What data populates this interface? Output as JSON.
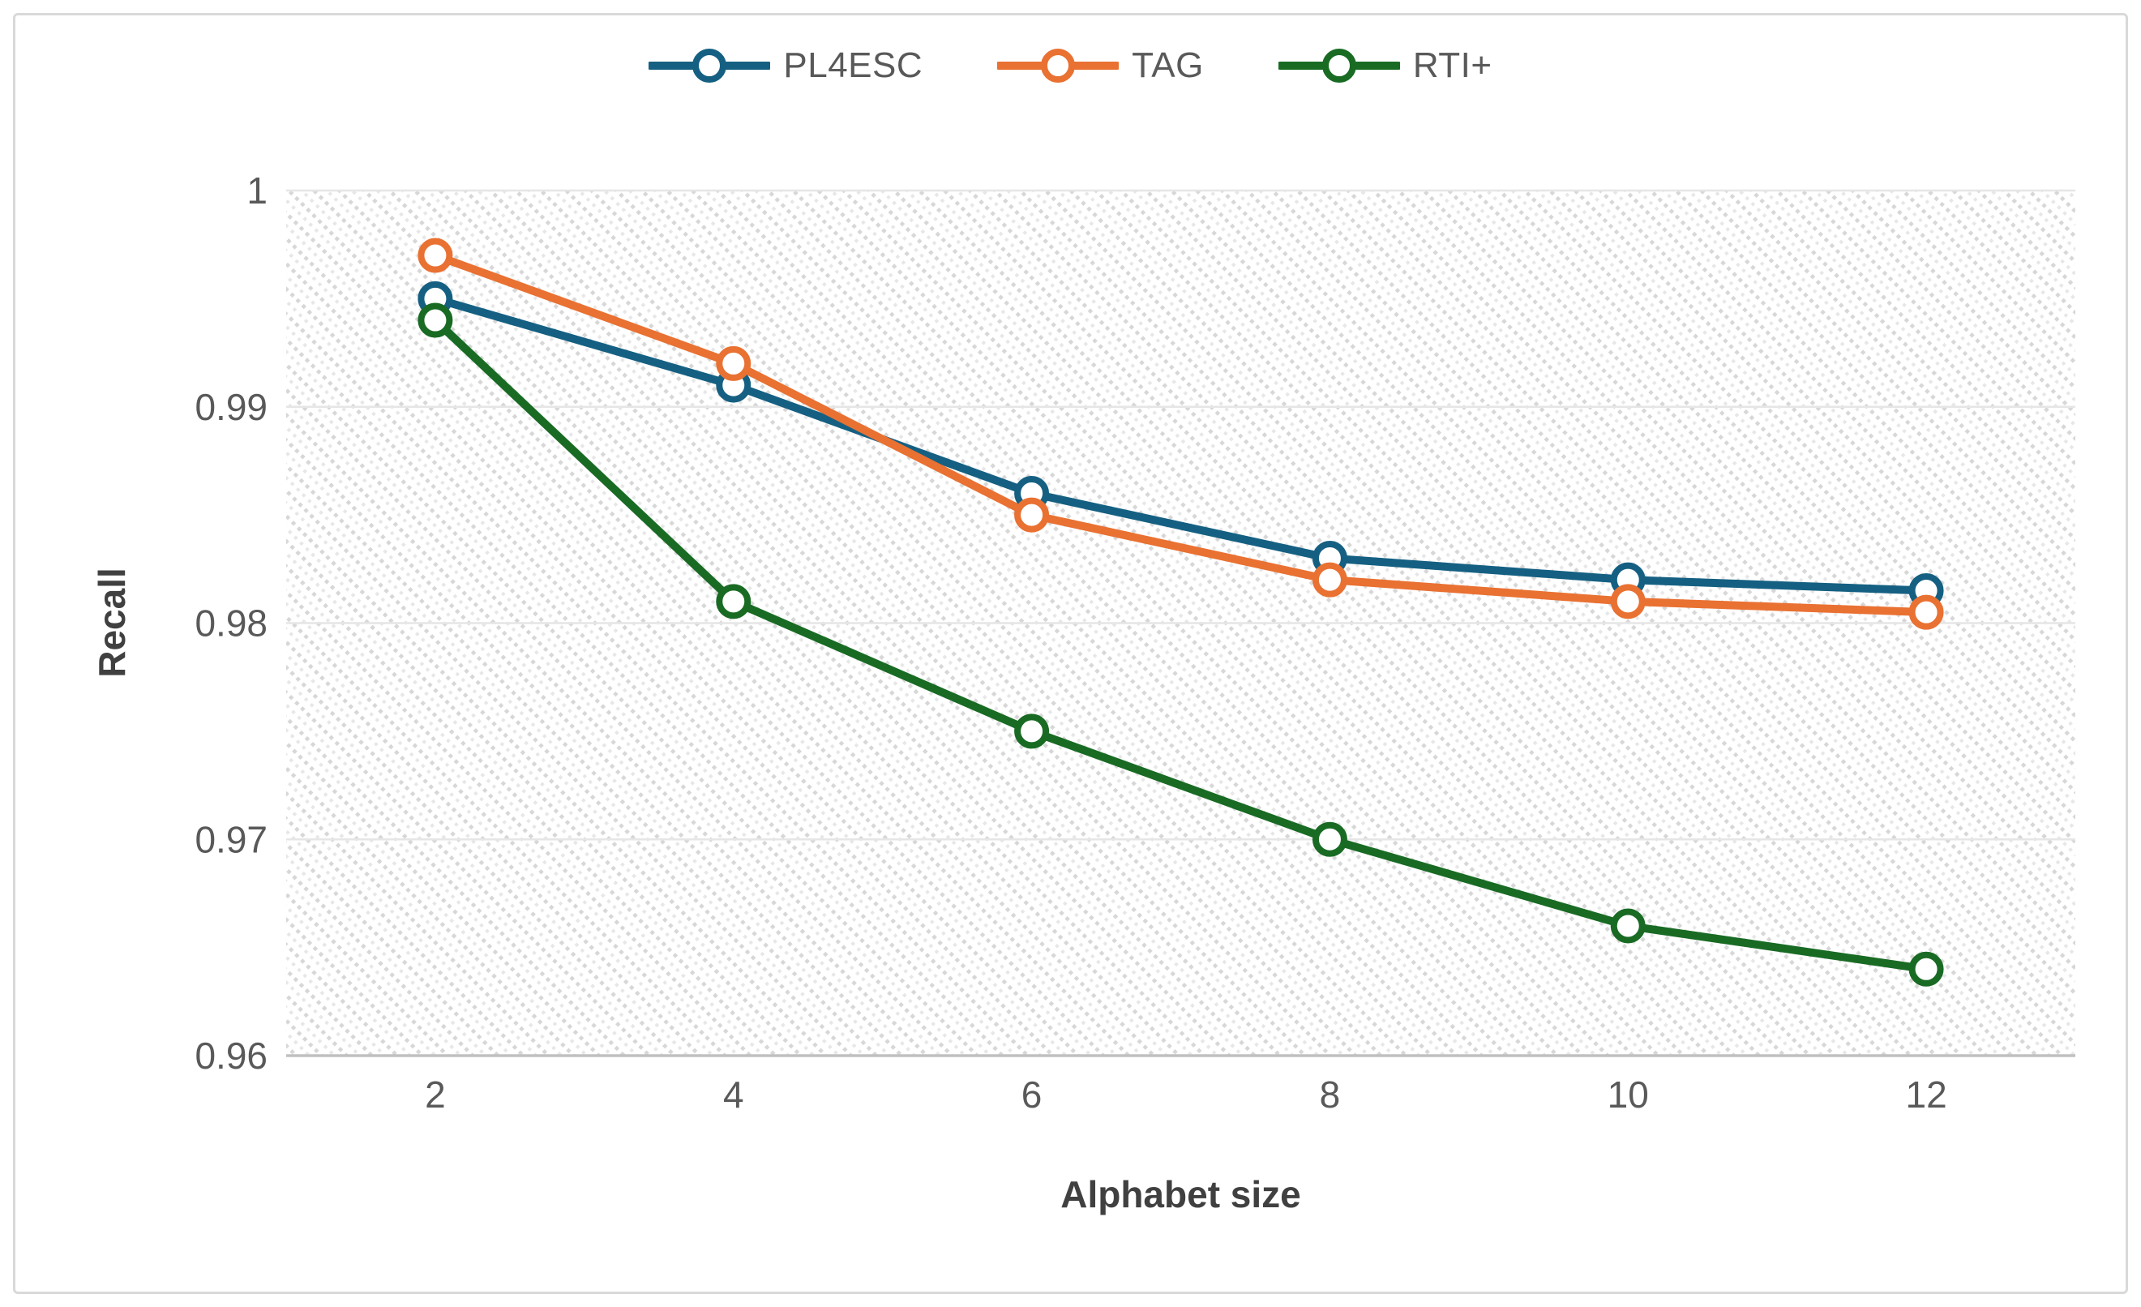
{
  "chart_data": {
    "type": "line",
    "title": "",
    "xlabel": "Alphabet size",
    "ylabel": "Recall",
    "x": [
      2,
      4,
      6,
      8,
      10,
      12
    ],
    "xtick_labels": [
      "2",
      "4",
      "6",
      "8",
      "10",
      "12"
    ],
    "series": [
      {
        "name": "PL4ESC",
        "color": "#156082",
        "values": [
          0.995,
          0.991,
          0.986,
          0.983,
          0.982,
          0.9815
        ]
      },
      {
        "name": "TAG",
        "color": "#E97132",
        "values": [
          0.997,
          0.992,
          0.985,
          0.982,
          0.981,
          0.9805
        ]
      },
      {
        "name": "RTI+",
        "color": "#196B24",
        "values": [
          0.994,
          0.981,
          0.975,
          0.97,
          0.966,
          0.964
        ]
      }
    ],
    "ylim": [
      0.96,
      1.0
    ],
    "yticks": [
      1,
      0.99,
      0.98,
      0.97,
      0.96
    ],
    "ytick_labels": [
      "1",
      "0.99",
      "0.98",
      "0.97",
      "0.96"
    ],
    "grid": true,
    "legend_position": "top-center",
    "plot_background": "diagonal-dot-hatch"
  },
  "style": {
    "grid_color": "#E6E6E6",
    "axis_line_color": "#C0C0C0",
    "tick_text_color": "#595959",
    "axis_title_color": "#404040",
    "hatch_dot_color": "#D7D7D7",
    "hatch_dot_faint_color": "#E7E7E7",
    "frame_border_color": "#D9D9D9",
    "marker_fill": "#FFFFFF"
  }
}
